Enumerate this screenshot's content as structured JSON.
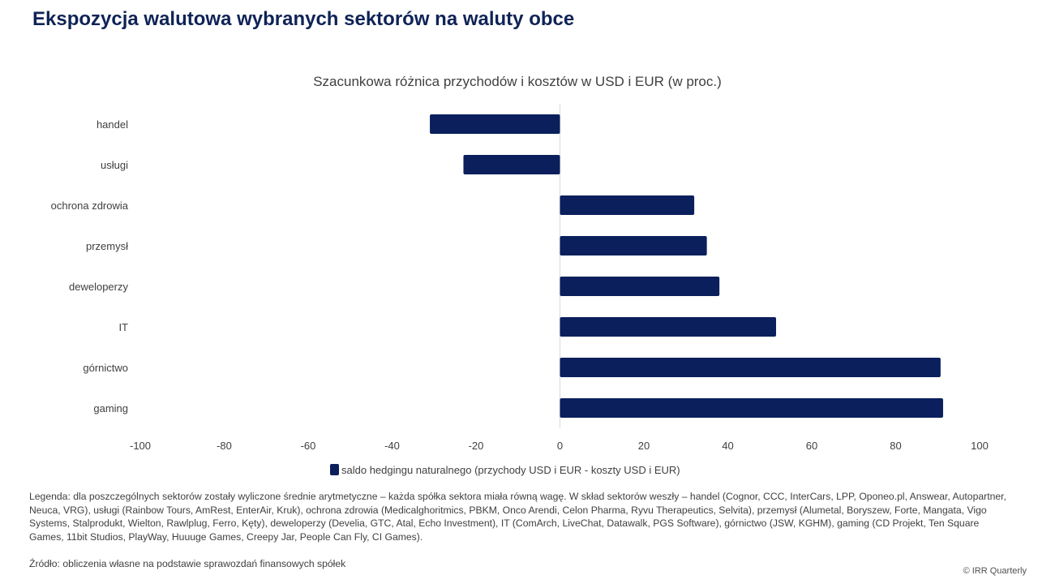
{
  "header": {
    "title": "Ekspozycja walutowa wybranych sektorów na waluty obce"
  },
  "chart_data": {
    "type": "bar",
    "orientation": "horizontal",
    "title": "Szacunkowa różnica przychodów i kosztów w USD i EUR (w proc.)",
    "xlabel": "",
    "ylabel": "",
    "categories": [
      "handel",
      "usługi",
      "ochrona zdrowia",
      "przemysł",
      "deweloperzy",
      "IT",
      "górnictwo",
      "gaming"
    ],
    "series": [
      {
        "name": "saldo hedgingu naturalnego (przychody USD i EUR - koszty USD i EUR)",
        "values": [
          -31,
          -23,
          32,
          35,
          38,
          51.5,
          90.7,
          91.3
        ],
        "color": "#0a1f5c"
      }
    ],
    "xlim": [
      -100,
      100
    ],
    "xticks": [
      -100,
      -80,
      -60,
      -40,
      -20,
      0,
      20,
      40,
      60,
      80,
      100
    ],
    "tick_labels": [
      "-100",
      "-80",
      "-60",
      "-40",
      "-20",
      "0",
      "20",
      "40",
      "60",
      "80",
      "100"
    ],
    "grid": false,
    "legend_position": "bottom"
  },
  "footer": {
    "note": "Legenda: dla poszczególnych sektorów zostały wyliczone średnie arytmetyczne – każda spółka sektora miała równą wagę. W skład sektorów weszły – handel (Cognor, CCC, InterCars, LPP, Oponeo.pl, Answear, Autopartner, Neuca, VRG), usługi (Rainbow Tours, AmRest, EnterAir, Kruk), ochrona zdrowia (Medicalghoritmics, PBKM, Onco Arendi, Celon Pharma, Ryvu Therapeutics, Selvita), przemysł (Alumetal, Boryszew, Forte, Mangata, Vigo Systems, Stalprodukt, Wielton, Rawlplug, Ferro, Kęty), deweloperzy (Develia, GTC, Atal, Echo Investment), IT (ComArch, LiveChat, Datawalk, PGS Software), górnictwo (JSW, KGHM), gaming (CD Projekt, Ten Square Games, 11bit Studios, PlayWay, Huuuge Games, Creepy Jar, People Can Fly, CI Games).",
    "source": "Źródło: obliczenia własne na podstawie sprawozdań finansowych spółek",
    "copyright": "© IRR Quarterly"
  }
}
